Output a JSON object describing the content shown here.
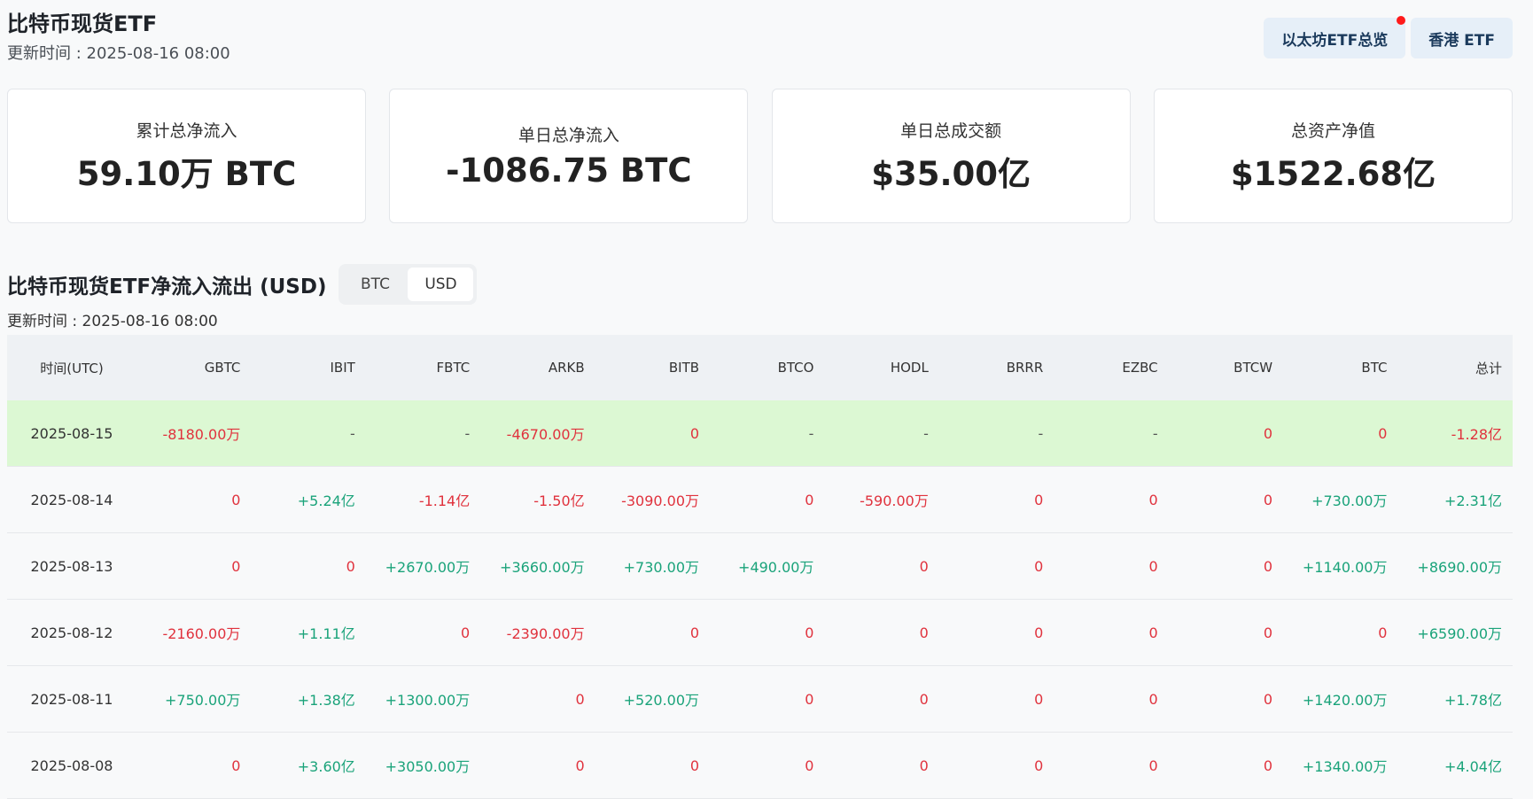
{
  "header": {
    "title": "比特币现货ETF",
    "update_time": "更新时间 : 2025-08-16 08:00",
    "buttons": [
      "以太坊ETF总览",
      "香港 ETF"
    ]
  },
  "cards": [
    {
      "label": "累计总净流入",
      "value": "59.10万 BTC"
    },
    {
      "label": "单日总净流入",
      "value": "-1086.75 BTC"
    },
    {
      "label": "单日总成交额",
      "value": "$35.00亿"
    },
    {
      "label": "总资产净值",
      "value": "$1522.68亿"
    }
  ],
  "section": {
    "title": "比特币现货ETF净流入流出 (USD)",
    "toggle": [
      "BTC",
      "USD"
    ],
    "toggle_active": "USD",
    "update_time": "更新时间 : 2025-08-16 08:00"
  },
  "table": {
    "columns": [
      "时间(UTC)",
      "GBTC",
      "IBIT",
      "FBTC",
      "ARKB",
      "BITB",
      "BTCO",
      "HODL",
      "BRRR",
      "EZBC",
      "BTCW",
      "BTC",
      "总计"
    ],
    "rows": [
      [
        "2025-08-15",
        "-8180.00万",
        "-",
        "-",
        "-4670.00万",
        "0",
        "-",
        "-",
        "-",
        "-",
        "0",
        "0",
        "-1.28亿"
      ],
      [
        "2025-08-14",
        "0",
        "+5.24亿",
        "-1.14亿",
        "-1.50亿",
        "-3090.00万",
        "0",
        "-590.00万",
        "0",
        "0",
        "0",
        "+730.00万",
        "+2.31亿"
      ],
      [
        "2025-08-13",
        "0",
        "0",
        "+2670.00万",
        "+3660.00万",
        "+730.00万",
        "+490.00万",
        "0",
        "0",
        "0",
        "0",
        "+1140.00万",
        "+8690.00万"
      ],
      [
        "2025-08-12",
        "-2160.00万",
        "+1.11亿",
        "0",
        "-2390.00万",
        "0",
        "0",
        "0",
        "0",
        "0",
        "0",
        "0",
        "+6590.00万"
      ],
      [
        "2025-08-11",
        "+750.00万",
        "+1.38亿",
        "+1300.00万",
        "0",
        "+520.00万",
        "0",
        "0",
        "0",
        "0",
        "0",
        "+1420.00万",
        "+1.78亿"
      ],
      [
        "2025-08-08",
        "0",
        "+3.60亿",
        "+3050.00万",
        "0",
        "0",
        "0",
        "0",
        "0",
        "0",
        "0",
        "+1340.00万",
        "+4.04亿"
      ]
    ]
  },
  "colors": {
    "positive": "#1aa37a",
    "negative": "#e0323d",
    "highlight_row": "#dcf8d3",
    "notification_dot": "#ff1a1a"
  }
}
